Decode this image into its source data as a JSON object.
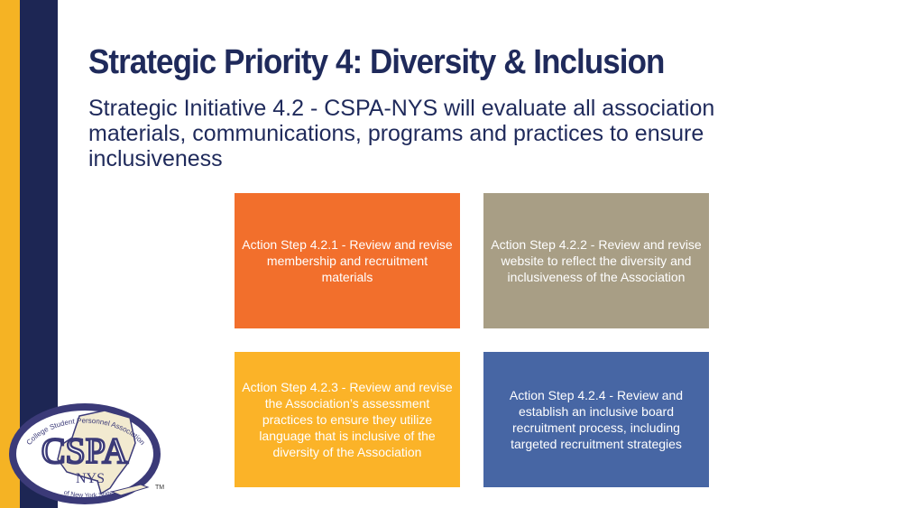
{
  "slide": {
    "title": "Strategic Priority 4: Diversity & Inclusion",
    "subtitle": "Strategic Initiative 4.2 - CSPA-NYS will evaluate all association materials, communications, programs and practices to ensure inclusiveness"
  },
  "action_steps": [
    {
      "text": "Action Step 4.2.1 - Review and revise membership and recruitment materials",
      "color": "#f26f2c"
    },
    {
      "text": "Action Step 4.2.2 - Review and revise website to reflect the diversity and inclusiveness of the Association",
      "color": "#a89e85"
    },
    {
      "text": "Action Step 4.2.3 - Review and revise the Association’s assessment practices to ensure they utilize language that is inclusive of the diversity of the Association",
      "color": "#fbb328"
    },
    {
      "text": "Action Step 4.2.4 - Review and establish an inclusive board recruitment process, including targeted recruitment strategies",
      "color": "#4766a4"
    }
  ],
  "logo": {
    "main_text": "CSPA",
    "sub_text": "NYS",
    "arc_top": "College Student Personnel Association",
    "arc_bottom": "of New York State",
    "trademark": "TM"
  },
  "colors": {
    "navy": "#1d2654",
    "gold": "#f5b324",
    "title": "#1f2a5b"
  }
}
